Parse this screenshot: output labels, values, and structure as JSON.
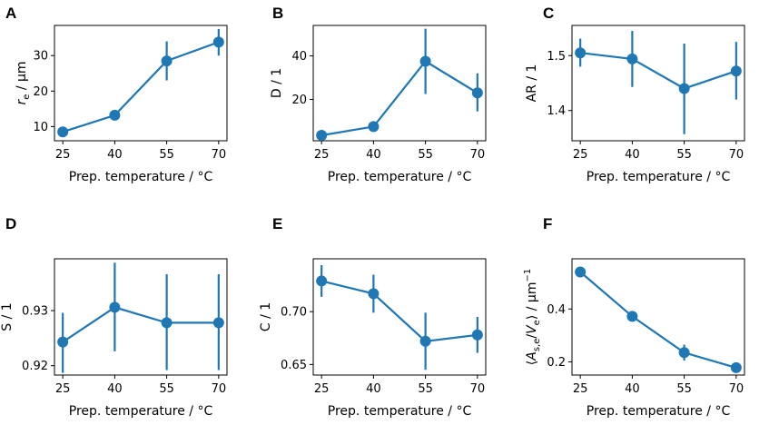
{
  "chart_data": [
    {
      "type": "line",
      "panel": "A",
      "x": [
        25,
        40,
        55,
        70
      ],
      "y": [
        8.5,
        13.2,
        28.5,
        33.8
      ],
      "yerr_low": [
        7.5,
        12.2,
        23.0,
        30.0
      ],
      "yerr_high": [
        9.5,
        14.2,
        34.0,
        37.5
      ],
      "xticks": [
        "25",
        "40",
        "55",
        "70"
      ],
      "yticks": [
        10,
        20,
        30
      ],
      "ylim": [
        6,
        38.5
      ],
      "xlabel": "Prep. temperature / °C",
      "ylabel": "r_e / µm"
    },
    {
      "type": "line",
      "panel": "B",
      "x": [
        25,
        40,
        55,
        70
      ],
      "y": [
        3.5,
        7.5,
        37.5,
        23.0
      ],
      "yerr_low": [
        2.5,
        6.5,
        22.5,
        14.5
      ],
      "yerr_high": [
        4.5,
        8.5,
        52.5,
        32.0
      ],
      "xticks": [
        "25",
        "40",
        "55",
        "70"
      ],
      "yticks": [
        20,
        40
      ],
      "ylim": [
        1,
        54
      ],
      "xlabel": "Prep. temperature / °C",
      "ylabel": "D / 1"
    },
    {
      "type": "line",
      "panel": "C",
      "x": [
        25,
        40,
        55,
        70
      ],
      "y": [
        1.505,
        1.494,
        1.44,
        1.472
      ],
      "yerr_low": [
        1.48,
        1.443,
        1.357,
        1.42
      ],
      "yerr_high": [
        1.531,
        1.545,
        1.522,
        1.525
      ],
      "xticks": [
        "25",
        "40",
        "55",
        "70"
      ],
      "yticks": [
        1.4,
        1.5
      ],
      "ytick_labels": [
        "1.4",
        "1.5"
      ],
      "ylim": [
        1.345,
        1.555
      ],
      "xlabel": "Prep. temperature / °C",
      "ylabel": "AR / 1"
    },
    {
      "type": "line",
      "panel": "D",
      "x": [
        25,
        40,
        55,
        70
      ],
      "y": [
        0.9243,
        0.9306,
        0.9278,
        0.9278
      ],
      "yerr_low": [
        0.9187,
        0.9226,
        0.9192,
        0.9192
      ],
      "yerr_high": [
        0.9296,
        0.9387,
        0.9366,
        0.9366
      ],
      "xticks": [
        "25",
        "40",
        "55",
        "70"
      ],
      "yticks": [
        0.92,
        0.93
      ],
      "ytick_labels": [
        "0.92",
        "0.93"
      ],
      "ylim": [
        0.9183,
        0.9394
      ],
      "xlabel": "Prep. temperature / °C",
      "ylabel": "S / 1"
    },
    {
      "type": "line",
      "panel": "E",
      "x": [
        25,
        40,
        55,
        70
      ],
      "y": [
        0.729,
        0.717,
        0.672,
        0.678
      ],
      "yerr_low": [
        0.714,
        0.699,
        0.645,
        0.661
      ],
      "yerr_high": [
        0.744,
        0.735,
        0.699,
        0.695
      ],
      "xticks": [
        "25",
        "40",
        "55",
        "70"
      ],
      "yticks": [
        0.65,
        0.7
      ],
      "ytick_labels": [
        "0.65",
        "0.70"
      ],
      "ylim": [
        0.64,
        0.75
      ],
      "xlabel": "Prep. temperature / °C",
      "ylabel": "C / 1"
    },
    {
      "type": "line",
      "panel": "F",
      "x": [
        25,
        40,
        55,
        70
      ],
      "y": [
        0.54,
        0.372,
        0.235,
        0.178
      ],
      "yerr_low": [
        0.528,
        0.362,
        0.205,
        0.168
      ],
      "yerr_high": [
        0.552,
        0.382,
        0.265,
        0.188
      ],
      "xticks": [
        "25",
        "40",
        "55",
        "70"
      ],
      "yticks": [
        0.2,
        0.4
      ],
      "ytick_labels": [
        "0.2",
        "0.4"
      ],
      "ylim": [
        0.15,
        0.59
      ],
      "xlabel": "Prep. temperature / °C",
      "ylabel": "⟨A_s,e/V_e⟩ / µm⁻¹"
    }
  ],
  "colors": {
    "series": "#1f77b4",
    "axes": "#000000"
  }
}
